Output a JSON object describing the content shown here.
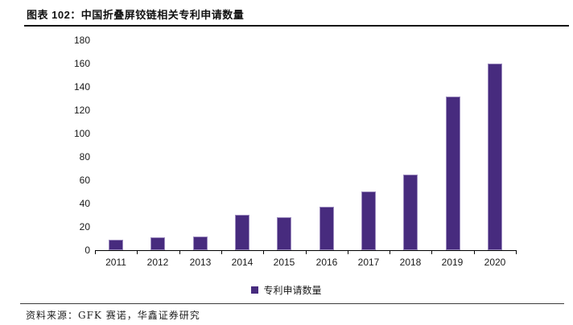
{
  "header": {
    "title": "图表 102：中国折叠屏铰链相关专利申请数量"
  },
  "chart_data": {
    "type": "bar",
    "title": "中国折叠屏铰链相关专利申请数量",
    "categories": [
      "2011",
      "2012",
      "2013",
      "2014",
      "2015",
      "2016",
      "2017",
      "2018",
      "2019",
      "2020"
    ],
    "series": [
      {
        "name": "专利申请数量",
        "values": [
          9,
          11,
          12,
          30,
          28,
          37,
          50,
          65,
          132,
          160
        ]
      }
    ],
    "xlabel": "",
    "ylabel": "",
    "ylim": [
      0,
      180
    ],
    "ytick_step": 20,
    "grid": false,
    "legend_position": "bottom-center"
  },
  "legend": {
    "label": "专利申请数量"
  },
  "footer": {
    "source": "资料来源：GFK 赛诺，华鑫证券研究"
  },
  "colors": {
    "bar_fill": "#472B7E",
    "bar_border": "#9C8BBE",
    "axis": "#000000",
    "title_text": "#111111",
    "rule_top": "#111111",
    "rule_bottom": "#3C3C3C"
  }
}
